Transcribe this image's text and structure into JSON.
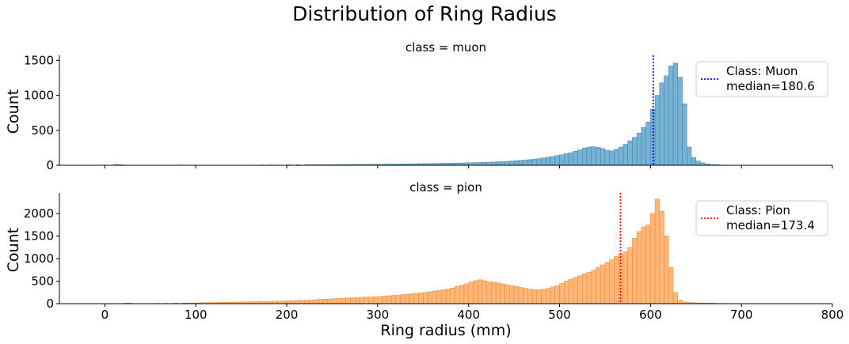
{
  "chart_data": {
    "type": "bar",
    "title": "Distribution of Ring Radius",
    "xlabel": "Ring radius (mm)",
    "ylabel": "Count",
    "xlim": [
      -50,
      800
    ],
    "xticks": [
      0,
      100,
      200,
      300,
      400,
      500,
      600,
      700,
      800
    ],
    "bin_width": 5,
    "panels": [
      {
        "id": "muon",
        "facet_title": "class = muon",
        "color": "#75b2d4",
        "edge_color": "#3d7fa8",
        "ylim": [
          0,
          1550
        ],
        "yticks": [
          0,
          500,
          1000,
          1500
        ],
        "median": {
          "x": 603,
          "color": "#0000ff",
          "label": "Class: Muon",
          "value_label": "median=180.6"
        },
        "bins": [
          [
            10,
            12
          ],
          [
            15,
            8
          ],
          [
            80,
            4
          ],
          [
            170,
            5
          ],
          [
            180,
            5
          ],
          [
            200,
            6
          ],
          [
            210,
            8
          ],
          [
            220,
            8
          ],
          [
            225,
            7
          ],
          [
            230,
            8
          ],
          [
            235,
            9
          ],
          [
            240,
            9
          ],
          [
            245,
            10
          ],
          [
            250,
            10
          ],
          [
            255,
            11
          ],
          [
            260,
            11
          ],
          [
            265,
            12
          ],
          [
            270,
            12
          ],
          [
            275,
            13
          ],
          [
            280,
            13
          ],
          [
            285,
            14
          ],
          [
            290,
            15
          ],
          [
            295,
            15
          ],
          [
            300,
            16
          ],
          [
            305,
            16
          ],
          [
            310,
            17
          ],
          [
            315,
            17
          ],
          [
            320,
            18
          ],
          [
            325,
            19
          ],
          [
            330,
            20
          ],
          [
            335,
            21
          ],
          [
            340,
            22
          ],
          [
            345,
            23
          ],
          [
            350,
            24
          ],
          [
            355,
            25
          ],
          [
            360,
            26
          ],
          [
            365,
            27
          ],
          [
            370,
            28
          ],
          [
            375,
            29
          ],
          [
            380,
            30
          ],
          [
            385,
            32
          ],
          [
            390,
            33
          ],
          [
            395,
            35
          ],
          [
            400,
            36
          ],
          [
            405,
            38
          ],
          [
            410,
            40
          ],
          [
            415,
            42
          ],
          [
            420,
            44
          ],
          [
            425,
            47
          ],
          [
            430,
            50
          ],
          [
            435,
            53
          ],
          [
            440,
            56
          ],
          [
            445,
            60
          ],
          [
            450,
            65
          ],
          [
            455,
            70
          ],
          [
            460,
            75
          ],
          [
            465,
            80
          ],
          [
            470,
            88
          ],
          [
            475,
            95
          ],
          [
            480,
            105
          ],
          [
            485,
            115
          ],
          [
            490,
            125
          ],
          [
            495,
            138
          ],
          [
            500,
            150
          ],
          [
            505,
            165
          ],
          [
            510,
            180
          ],
          [
            515,
            200
          ],
          [
            520,
            220
          ],
          [
            525,
            245
          ],
          [
            530,
            260
          ],
          [
            535,
            265
          ],
          [
            540,
            255
          ],
          [
            545,
            240
          ],
          [
            550,
            215
          ],
          [
            555,
            205
          ],
          [
            560,
            230
          ],
          [
            565,
            260
          ],
          [
            570,
            300
          ],
          [
            575,
            350
          ],
          [
            580,
            400
          ],
          [
            585,
            460
          ],
          [
            590,
            540
          ],
          [
            595,
            620
          ],
          [
            600,
            800
          ],
          [
            605,
            1000
          ],
          [
            610,
            1180
          ],
          [
            615,
            1280
          ],
          [
            620,
            1420
          ],
          [
            625,
            1460
          ],
          [
            630,
            1260
          ],
          [
            635,
            880
          ],
          [
            640,
            260
          ],
          [
            645,
            110
          ],
          [
            650,
            60
          ],
          [
            655,
            35
          ],
          [
            660,
            20
          ],
          [
            665,
            12
          ],
          [
            670,
            8
          ],
          [
            675,
            5
          ],
          [
            680,
            4
          ]
        ]
      },
      {
        "id": "pion",
        "facet_title": "class = pion",
        "color": "#ffb677",
        "edge_color": "#e08a38",
        "ylim": [
          0,
          2420
        ],
        "yticks": [
          0,
          500,
          1000,
          1500,
          2000
        ],
        "median": {
          "x": 567,
          "color": "#ff0000",
          "label": "Class: Pion",
          "value_label": "median=173.4"
        },
        "bins": [
          [
            20,
            12
          ],
          [
            25,
            15
          ],
          [
            55,
            8
          ],
          [
            65,
            8
          ],
          [
            75,
            10
          ],
          [
            85,
            12
          ],
          [
            90,
            14
          ],
          [
            95,
            16
          ],
          [
            100,
            18
          ],
          [
            105,
            20
          ],
          [
            110,
            22
          ],
          [
            115,
            24
          ],
          [
            120,
            26
          ],
          [
            125,
            28
          ],
          [
            130,
            30
          ],
          [
            135,
            32
          ],
          [
            140,
            34
          ],
          [
            145,
            36
          ],
          [
            150,
            38
          ],
          [
            155,
            40
          ],
          [
            160,
            42
          ],
          [
            165,
            44
          ],
          [
            170,
            46
          ],
          [
            175,
            48
          ],
          [
            180,
            50
          ],
          [
            185,
            53
          ],
          [
            190,
            56
          ],
          [
            195,
            60
          ],
          [
            200,
            64
          ],
          [
            205,
            68
          ],
          [
            210,
            72
          ],
          [
            215,
            76
          ],
          [
            220,
            80
          ],
          [
            225,
            85
          ],
          [
            230,
            90
          ],
          [
            235,
            95
          ],
          [
            240,
            100
          ],
          [
            245,
            105
          ],
          [
            250,
            110
          ],
          [
            255,
            115
          ],
          [
            260,
            120
          ],
          [
            265,
            125
          ],
          [
            270,
            130
          ],
          [
            275,
            135
          ],
          [
            280,
            140
          ],
          [
            285,
            145
          ],
          [
            290,
            150
          ],
          [
            295,
            155
          ],
          [
            300,
            160
          ],
          [
            305,
            168
          ],
          [
            310,
            176
          ],
          [
            315,
            184
          ],
          [
            320,
            192
          ],
          [
            325,
            200
          ],
          [
            330,
            210
          ],
          [
            335,
            220
          ],
          [
            340,
            230
          ],
          [
            345,
            240
          ],
          [
            350,
            250
          ],
          [
            355,
            265
          ],
          [
            360,
            280
          ],
          [
            365,
            295
          ],
          [
            370,
            310
          ],
          [
            375,
            330
          ],
          [
            380,
            350
          ],
          [
            385,
            380
          ],
          [
            390,
            410
          ],
          [
            395,
            440
          ],
          [
            400,
            480
          ],
          [
            405,
            510
          ],
          [
            410,
            530
          ],
          [
            415,
            510
          ],
          [
            420,
            490
          ],
          [
            425,
            480
          ],
          [
            430,
            460
          ],
          [
            435,
            440
          ],
          [
            440,
            420
          ],
          [
            445,
            400
          ],
          [
            450,
            380
          ],
          [
            455,
            360
          ],
          [
            460,
            340
          ],
          [
            465,
            320
          ],
          [
            470,
            310
          ],
          [
            475,
            310
          ],
          [
            480,
            320
          ],
          [
            485,
            340
          ],
          [
            490,
            370
          ],
          [
            495,
            400
          ],
          [
            500,
            450
          ],
          [
            505,
            500
          ],
          [
            510,
            540
          ],
          [
            515,
            580
          ],
          [
            520,
            620
          ],
          [
            525,
            660
          ],
          [
            530,
            700
          ],
          [
            535,
            740
          ],
          [
            540,
            800
          ],
          [
            545,
            860
          ],
          [
            550,
            920
          ],
          [
            555,
            980
          ],
          [
            560,
            1050
          ],
          [
            565,
            1100
          ],
          [
            570,
            1150
          ],
          [
            575,
            1250
          ],
          [
            580,
            1450
          ],
          [
            585,
            1600
          ],
          [
            590,
            1700
          ],
          [
            595,
            1750
          ],
          [
            600,
            2000
          ],
          [
            605,
            2320
          ],
          [
            610,
            2050
          ],
          [
            615,
            1500
          ],
          [
            620,
            800
          ],
          [
            625,
            250
          ],
          [
            630,
            80
          ],
          [
            635,
            40
          ],
          [
            640,
            28
          ],
          [
            645,
            22
          ],
          [
            650,
            18
          ],
          [
            655,
            15
          ],
          [
            660,
            12
          ],
          [
            665,
            10
          ],
          [
            670,
            8
          ],
          [
            675,
            6
          ],
          [
            680,
            5
          ],
          [
            685,
            4
          ],
          [
            690,
            4
          ]
        ]
      }
    ]
  }
}
